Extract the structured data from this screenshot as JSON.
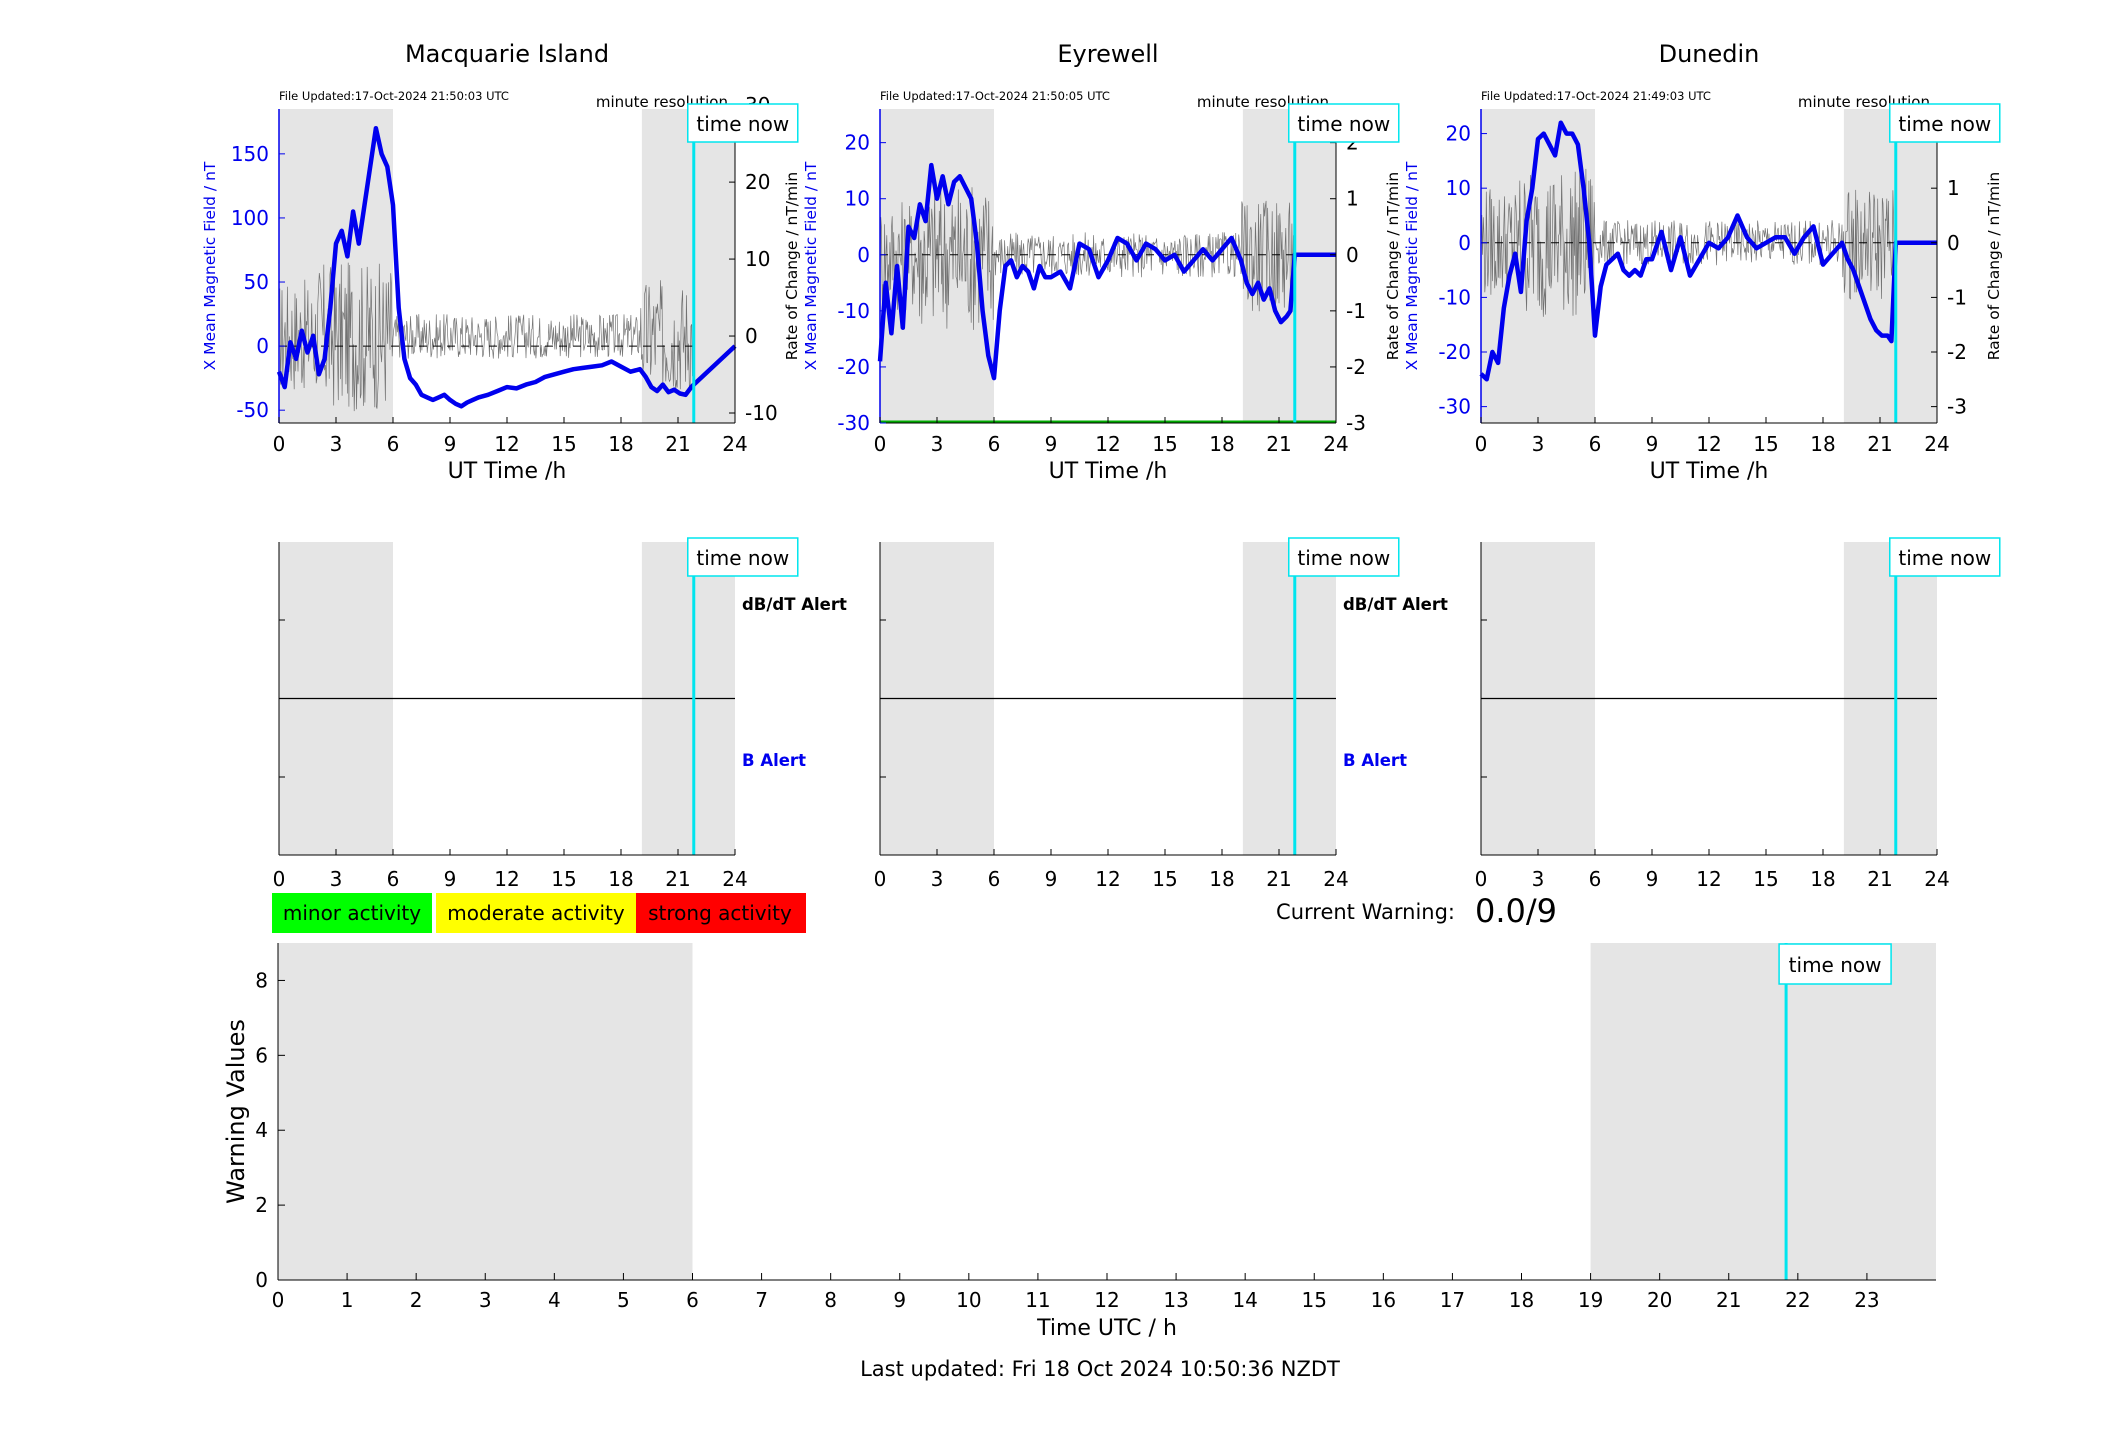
{
  "colors": {
    "field": "#0000ee",
    "rate": "#555555",
    "now_line": "#00e5ee",
    "shade": "#e5e5e5",
    "minor": "#00ff00",
    "moderate": "#ffff00",
    "strong": "#ff0000",
    "baseline_green": "#00aa00"
  },
  "chart_data": [
    {
      "type": "line",
      "title": "Macquarie Island",
      "file_updated": "File Updated:17-Oct-2024 21:50:03 UTC",
      "resolution_label": "minute resolution",
      "now_label": "time now",
      "now_hour": 21.83,
      "shaded_hours": [
        [
          0,
          6
        ],
        [
          19.1,
          24
        ]
      ],
      "xlabel": "UT Time /h",
      "xlim": [
        0,
        24
      ],
      "xticks": [
        0,
        3,
        6,
        9,
        12,
        15,
        18,
        21,
        24
      ],
      "ylabel": "X Mean Magnetic Field / nT",
      "ylim": [
        -60,
        185
      ],
      "yticks": [
        -50,
        0,
        50,
        100,
        150
      ],
      "y2label": "Rate of Change / nT/min",
      "y2lim": [
        -11.3,
        29.5
      ],
      "y2ticks": [
        -10,
        0,
        10,
        20,
        30
      ],
      "series": [
        {
          "axis": "left",
          "x": [
            0,
            0.3,
            0.6,
            0.9,
            1.2,
            1.5,
            1.8,
            2.1,
            2.4,
            2.7,
            3.0,
            3.3,
            3.6,
            3.9,
            4.2,
            4.5,
            4.8,
            5.1,
            5.4,
            5.7,
            6.0,
            6.3,
            6.6,
            6.9,
            7.2,
            7.5,
            7.8,
            8.1,
            8.4,
            8.7,
            9.0,
            9.3,
            9.6,
            9.9,
            10.2,
            10.5,
            11,
            11.5,
            12,
            12.5,
            13,
            13.5,
            14,
            14.5,
            15,
            15.5,
            16,
            16.5,
            17,
            17.5,
            18,
            18.5,
            19,
            19.3,
            19.6,
            19.9,
            20.2,
            20.5,
            20.8,
            21.1,
            21.4,
            21.7,
            21.83,
            24
          ],
          "values": [
            -20,
            -32,
            3,
            -10,
            12,
            -5,
            8,
            -22,
            -10,
            30,
            80,
            90,
            70,
            105,
            80,
            110,
            140,
            170,
            150,
            140,
            110,
            30,
            -10,
            -25,
            -30,
            -38,
            -40,
            -42,
            -40,
            -38,
            -42,
            -45,
            -47,
            -44,
            -42,
            -40,
            -38,
            -35,
            -32,
            -33,
            -30,
            -28,
            -24,
            -22,
            -20,
            -18,
            -17,
            -16,
            -15,
            -12,
            -16,
            -20,
            -18,
            -24,
            -32,
            -35,
            -30,
            -36,
            -34,
            -37,
            -38,
            -32,
            -30,
            0
          ]
        }
      ]
    },
    {
      "type": "line",
      "title": "Eyrewell",
      "file_updated": "File Updated:17-Oct-2024 21:50:05 UTC",
      "resolution_label": "minute resolution",
      "now_label": "time now",
      "now_hour": 21.83,
      "shaded_hours": [
        [
          0,
          6
        ],
        [
          19.1,
          24
        ]
      ],
      "xlabel": "UT Time /h",
      "xlim": [
        0,
        24
      ],
      "xticks": [
        0,
        3,
        6,
        9,
        12,
        15,
        18,
        21,
        24
      ],
      "ylabel": "X Mean Magnetic Field / nT",
      "ylim": [
        -30,
        26
      ],
      "yticks": [
        -30,
        -20,
        -10,
        0,
        10,
        20
      ],
      "y2label": "Rate of Change / nT/min",
      "y2lim": [
        -3,
        2.6
      ],
      "y2ticks": [
        -3,
        -2,
        -1,
        0,
        1,
        2
      ],
      "series": [
        {
          "axis": "left",
          "x": [
            0,
            0.3,
            0.6,
            0.9,
            1.2,
            1.5,
            1.8,
            2.1,
            2.4,
            2.7,
            3.0,
            3.3,
            3.6,
            3.9,
            4.2,
            4.5,
            4.8,
            5.1,
            5.4,
            5.7,
            6.0,
            6.3,
            6.6,
            6.9,
            7.2,
            7.5,
            7.8,
            8.1,
            8.4,
            8.7,
            9.0,
            9.5,
            10,
            10.5,
            11,
            11.5,
            12,
            12.5,
            13,
            13.5,
            14,
            14.5,
            15,
            15.5,
            16,
            16.5,
            17,
            17.5,
            18,
            18.5,
            19,
            19.3,
            19.6,
            19.9,
            20.2,
            20.5,
            20.8,
            21.1,
            21.4,
            21.6,
            21.83,
            24
          ],
          "values": [
            -19,
            -5,
            -14,
            -2,
            -13,
            5,
            3,
            9,
            6,
            16,
            10,
            14,
            9,
            13,
            14,
            12,
            10,
            2,
            -10,
            -18,
            -22,
            -10,
            -2,
            -1,
            -4,
            -2,
            -3,
            -6,
            -2,
            -4,
            -4,
            -3,
            -6,
            2,
            1,
            -4,
            -1,
            3,
            2,
            -1,
            2,
            1,
            -1,
            0,
            -3,
            -1,
            1,
            -1,
            1,
            3,
            -1,
            -5,
            -7,
            -5,
            -8,
            -6,
            -10,
            -12,
            -11,
            -10,
            0,
            0
          ]
        }
      ]
    },
    {
      "type": "line",
      "title": "Dunedin",
      "file_updated": "File Updated:17-Oct-2024 21:49:03 UTC",
      "resolution_label": "minute resolution",
      "now_label": "time now",
      "now_hour": 21.83,
      "shaded_hours": [
        [
          0,
          6
        ],
        [
          19.1,
          24
        ]
      ],
      "xlabel": "UT Time /h",
      "xlim": [
        0,
        24
      ],
      "xticks": [
        0,
        3,
        6,
        9,
        12,
        15,
        18,
        21,
        24
      ],
      "ylabel": "X Mean Magnetic Field / nT",
      "ylim": [
        -33,
        24.5
      ],
      "yticks": [
        -30,
        -20,
        -10,
        0,
        10,
        20
      ],
      "y2label": "Rate of Change / nT/min",
      "y2lim": [
        -3.3,
        2.45
      ],
      "y2ticks": [
        -3,
        -2,
        -1,
        0,
        1,
        2
      ],
      "series": [
        {
          "axis": "left",
          "x": [
            0,
            0.3,
            0.6,
            0.9,
            1.2,
            1.5,
            1.8,
            2.1,
            2.4,
            2.7,
            3.0,
            3.3,
            3.6,
            3.9,
            4.2,
            4.5,
            4.8,
            5.1,
            5.4,
            5.7,
            6.0,
            6.3,
            6.6,
            6.9,
            7.2,
            7.5,
            7.8,
            8.1,
            8.4,
            8.7,
            9.0,
            9.5,
            10,
            10.5,
            11,
            11.5,
            12,
            12.5,
            13,
            13.5,
            14,
            14.5,
            15,
            15.5,
            16,
            16.5,
            17,
            17.5,
            18,
            18.5,
            19,
            19.3,
            19.6,
            19.9,
            20.2,
            20.5,
            20.8,
            21.1,
            21.4,
            21.6,
            21.83,
            24
          ],
          "values": [
            -24,
            -25,
            -20,
            -22,
            -12,
            -6,
            -2,
            -9,
            4,
            10,
            19,
            20,
            18,
            16,
            22,
            20,
            20,
            18,
            10,
            0,
            -17,
            -8,
            -4,
            -3,
            -2,
            -5,
            -6,
            -5,
            -6,
            -3,
            -3,
            2,
            -5,
            1,
            -6,
            -3,
            0,
            -1,
            1,
            5,
            1,
            -1,
            0,
            1,
            1,
            -2,
            1,
            3,
            -4,
            -2,
            0,
            -3,
            -5,
            -8,
            -11,
            -14,
            -16,
            -17,
            -17,
            -18,
            0,
            0
          ]
        }
      ]
    },
    {
      "type": "line",
      "title": "",
      "now_label": "time now",
      "dbdt_label": "dB/dT Alert",
      "b_label": "B Alert",
      "shaded_hours": [
        [
          0,
          6
        ],
        [
          19.1,
          24
        ]
      ],
      "xticks": [
        0,
        3,
        6,
        9,
        12,
        15,
        18,
        21,
        24
      ]
    },
    {
      "type": "line",
      "title": "",
      "xlabel": "Time UTC / h",
      "ylabel": "Warning Values",
      "xlim": [
        0,
        24
      ],
      "ylim": [
        0,
        9
      ],
      "xticks": [
        0,
        1,
        2,
        3,
        4,
        5,
        6,
        7,
        8,
        9,
        10,
        11,
        12,
        13,
        14,
        15,
        16,
        17,
        18,
        19,
        20,
        21,
        22,
        23
      ],
      "yticks": [
        0,
        2,
        4,
        6,
        8
      ],
      "now_label": "time now",
      "now_hour": 21.83,
      "shaded_hours": [
        [
          0,
          6
        ],
        [
          19,
          24
        ]
      ],
      "series": [
        {
          "name": "",
          "x": [],
          "values": []
        }
      ]
    }
  ],
  "legend": {
    "minor": "minor activity",
    "moderate": "moderate activity",
    "strong": "strong activity"
  },
  "current_warning": {
    "label": "Current Warning:",
    "value": "0.0/9"
  },
  "footer": "Last updated: Fri 18 Oct 2024 10:50:36 NZDT"
}
